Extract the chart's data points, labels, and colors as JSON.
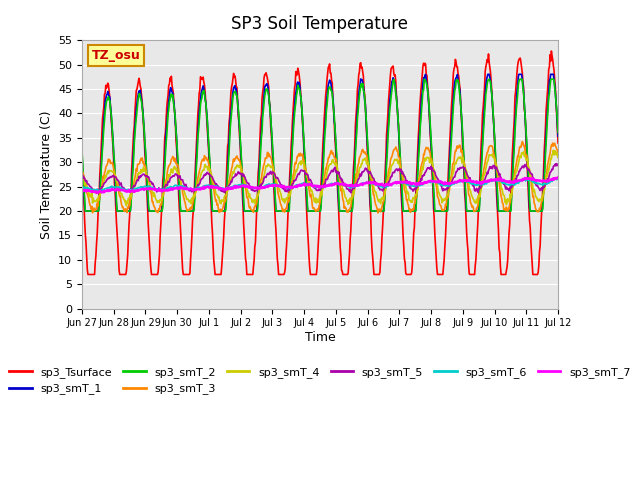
{
  "title": "SP3 Soil Temperature",
  "xlabel": "Time",
  "ylabel": "Soil Temperature (C)",
  "ylim": [
    0,
    55
  ],
  "yticks": [
    0,
    5,
    10,
    15,
    20,
    25,
    30,
    35,
    40,
    45,
    50,
    55
  ],
  "xtick_labels": [
    "Jun 27",
    "Jun 28",
    "Jun 29",
    "Jun 30",
    "Jul 1",
    "Jul 2",
    "Jul 3",
    "Jul 4",
    "Jul 5",
    "Jul 6",
    "Jul 7",
    "Jul 8",
    "Jul 9",
    "Jul 10",
    "Jul 11",
    "Jul 12"
  ],
  "annotation_text": "TZ_osu",
  "annotation_color": "#cc0000",
  "annotation_bg": "#ffff99",
  "annotation_border": "#cc8800",
  "series_colors": {
    "sp3_Tsurface": "#ff0000",
    "sp3_smT_1": "#0000cc",
    "sp3_smT_2": "#00cc00",
    "sp3_smT_3": "#ff8800",
    "sp3_smT_4": "#cccc00",
    "sp3_smT_5": "#aa00aa",
    "sp3_smT_6": "#00cccc",
    "sp3_smT_7": "#ff00ff"
  },
  "plot_bg": "#e8e8e8",
  "n_days": 15,
  "pts_per_day": 48
}
